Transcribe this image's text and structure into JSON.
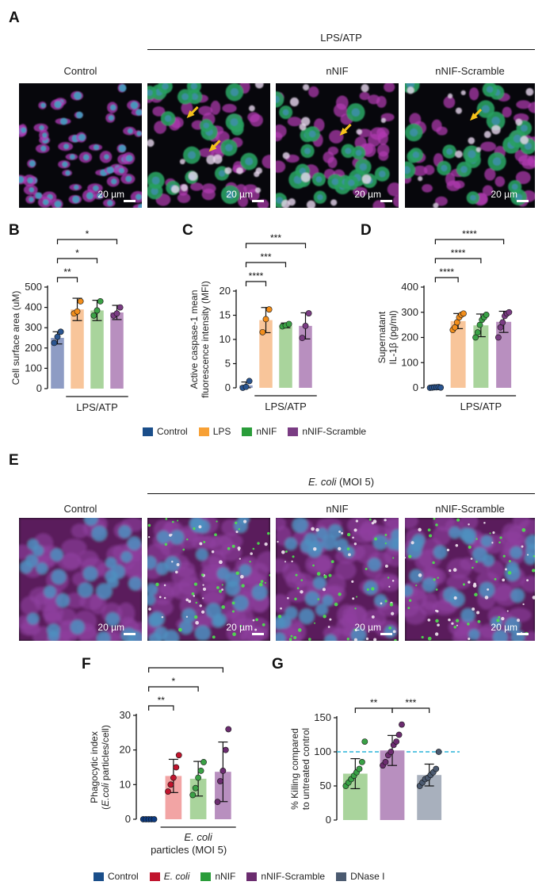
{
  "panels": {
    "A": {
      "letter": "A",
      "group_label": "LPS/ATP",
      "conditions": [
        "Control",
        "nNIF",
        "nNIF-Scramble"
      ],
      "scale_label": "20 µm"
    },
    "E": {
      "letter": "E",
      "group_label_italic": "E. coli",
      "group_label_rest": " (MOI 5)",
      "conditions": [
        "Control",
        "nNIF",
        "nNIF-Scramble"
      ],
      "scale_label": "20 µm"
    },
    "legend1": [
      {
        "label": "Control",
        "color": "#1a4e8a"
      },
      {
        "label": "LPS",
        "color": "#f7a035"
      },
      {
        "label": "nNIF",
        "color": "#2a9d3a"
      },
      {
        "label": "nNIF-Scramble",
        "color": "#7a3c83"
      }
    ],
    "legend2": [
      {
        "label": "Control",
        "color": "#1a4e8a",
        "italic": false
      },
      {
        "label": "E. coli",
        "color": "#c0142d",
        "italic": true
      },
      {
        "label": "nNIF",
        "color": "#2a9d3a",
        "italic": false
      },
      {
        "label": "nNIF-Scramble",
        "color": "#6b2c6f",
        "italic": false
      },
      {
        "label": "DNase I",
        "color": "#4b5a70",
        "italic": false
      }
    ]
  },
  "chart_data": [
    {
      "id": "B",
      "letter": "B",
      "type": "bar",
      "ylabel": "Cell surface area (uM)",
      "ylim": [
        0,
        500
      ],
      "yticks": [
        0,
        100,
        200,
        300,
        400,
        500
      ],
      "categories": [
        "Control",
        "LPS",
        "nNIF",
        "nNIF-Scramble"
      ],
      "values": [
        250,
        390,
        385,
        375
      ],
      "errors": [
        30,
        55,
        50,
        35
      ],
      "points": [
        [
          225,
          255,
          280
        ],
        [
          370,
          380,
          430
        ],
        [
          360,
          385,
          430
        ],
        [
          360,
          370,
          400
        ]
      ],
      "bar_colors": [
        "#8e9cc4",
        "#f8c59a",
        "#a9d49c",
        "#b88fbf"
      ],
      "point_colors": [
        "#2a5591",
        "#f28e1c",
        "#3aa146",
        "#7a3c83"
      ],
      "group_label": "LPS/ATP",
      "significance": [
        {
          "from": 0,
          "to": 1,
          "label": "**"
        },
        {
          "from": 0,
          "to": 2,
          "label": "*"
        },
        {
          "from": 0,
          "to": 3,
          "label": "*"
        }
      ]
    },
    {
      "id": "C",
      "letter": "C",
      "type": "bar",
      "ylabel": "Active caspase-1 mean fluorescence intensity (MFI)",
      "ylabel_lines": [
        "Active caspase-1 mean",
        "fluorescence intensity (MFI)"
      ],
      "ylim": [
        0,
        20
      ],
      "yticks": [
        0,
        5,
        10,
        15,
        20
      ],
      "categories": [
        "Control",
        "LPS",
        "nNIF",
        "nNIF-Scramble"
      ],
      "values": [
        0.5,
        14,
        12.9,
        12.8
      ],
      "errors": [
        0.7,
        2.6,
        0.5,
        2.7
      ],
      "points": [
        [
          0,
          0.2,
          1.4
        ],
        [
          11.5,
          14.2,
          16.2
        ],
        [
          12.7,
          12.9,
          13.2
        ],
        [
          10.3,
          12.8,
          15.4
        ]
      ],
      "bar_colors": [
        "#8e9cc4",
        "#f8c59a",
        "#a9d49c",
        "#b88fbf"
      ],
      "point_colors": [
        "#2a5591",
        "#f28e1c",
        "#3aa146",
        "#7a3c83"
      ],
      "group_label": "LPS/ATP",
      "significance": [
        {
          "from": 0,
          "to": 1,
          "label": "****"
        },
        {
          "from": 0,
          "to": 2,
          "label": "***"
        },
        {
          "from": 0,
          "to": 3,
          "label": "***"
        }
      ]
    },
    {
      "id": "D",
      "letter": "D",
      "type": "bar",
      "ylabel": "Supernatant IL-1β (pg/ml)",
      "ylabel_lines": [
        "Supernatant",
        "IL-1β (pg/ml)"
      ],
      "ylim": [
        0,
        400
      ],
      "yticks": [
        0,
        100,
        200,
        300,
        400
      ],
      "categories": [
        "Control",
        "LPS",
        "nNIF",
        "nNIF-Scramble"
      ],
      "values": [
        2,
        265,
        248,
        262
      ],
      "errors": [
        2,
        30,
        45,
        42
      ],
      "points": [
        [
          0,
          1,
          2,
          2,
          3,
          1
        ],
        [
          230,
          240,
          260,
          280,
          290,
          295
        ],
        [
          200,
          220,
          250,
          270,
          280,
          290
        ],
        [
          200,
          240,
          260,
          285,
          295,
          300
        ]
      ],
      "bar_colors": [
        "#8e9cc4",
        "#f8c59a",
        "#a9d49c",
        "#b88fbf"
      ],
      "point_colors": [
        "#2a5591",
        "#f28e1c",
        "#3aa146",
        "#7a3c83"
      ],
      "group_label": "LPS/ATP",
      "significance": [
        {
          "from": 0,
          "to": 1,
          "label": "****"
        },
        {
          "from": 0,
          "to": 2,
          "label": "****"
        },
        {
          "from": 0,
          "to": 3,
          "label": "****"
        }
      ]
    },
    {
      "id": "F",
      "letter": "F",
      "type": "bar",
      "ylabel": "Phagocytic index (E.coli particles/cell)",
      "ylabel_lines": [
        "Phagocytic index",
        "(E.coli particles/cell)"
      ],
      "ylim": [
        0,
        30
      ],
      "yticks": [
        0,
        10,
        20,
        30
      ],
      "categories": [
        "Control",
        "E. coli",
        "nNIF",
        "nNIF-Scramble"
      ],
      "values": [
        0,
        12.5,
        11.7,
        13.7
      ],
      "errors": [
        0,
        4.8,
        5,
        8.6
      ],
      "points": [
        [
          0,
          0,
          0,
          0,
          0
        ],
        [
          8,
          10,
          12,
          15,
          18.5
        ],
        [
          7,
          9,
          12,
          14,
          16.5
        ],
        [
          5,
          11,
          14,
          20,
          26
        ]
      ],
      "bar_colors": [
        "#6b86b8",
        "#f2a4a4",
        "#a9d49c",
        "#b88fbf"
      ],
      "point_colors": [
        "#0e3c82",
        "#c0142d",
        "#3aa146",
        "#6b2c6f"
      ],
      "group_label_italic": "E. coli",
      "group_label_rest": "particles (MOI 5)",
      "significance": [
        {
          "from": 0,
          "to": 1,
          "label": "**"
        },
        {
          "from": 0,
          "to": 2,
          "label": "*"
        },
        {
          "from": 0,
          "to": 3,
          "label": "**"
        }
      ]
    },
    {
      "id": "G",
      "letter": "G",
      "type": "bar",
      "ylabel": "% Killing compared to untreated control",
      "ylabel_lines": [
        "% Killing compared",
        "to untreated control"
      ],
      "ylim": [
        0,
        150
      ],
      "yticks": [
        0,
        50,
        100,
        150
      ],
      "categories": [
        "nNIF",
        "nNIF-Scramble",
        "DNase I"
      ],
      "values": [
        68,
        102,
        66
      ],
      "errors": [
        22,
        22,
        16
      ],
      "points": [
        [
          50,
          55,
          60,
          65,
          70,
          75,
          85,
          115
        ],
        [
          80,
          85,
          95,
          100,
          110,
          115,
          125,
          140
        ],
        [
          50,
          55,
          60,
          62,
          66,
          70,
          75,
          100
        ]
      ],
      "bar_colors": [
        "#a9d49c",
        "#b88fbf",
        "#a8b0bd"
      ],
      "point_colors": [
        "#3aa146",
        "#6b2c6f",
        "#4b5a70"
      ],
      "reference_line": 100,
      "significance": [
        {
          "from": 0,
          "to": 1,
          "label": "**"
        },
        {
          "from": 1,
          "to": 2,
          "label": "***"
        }
      ]
    }
  ]
}
